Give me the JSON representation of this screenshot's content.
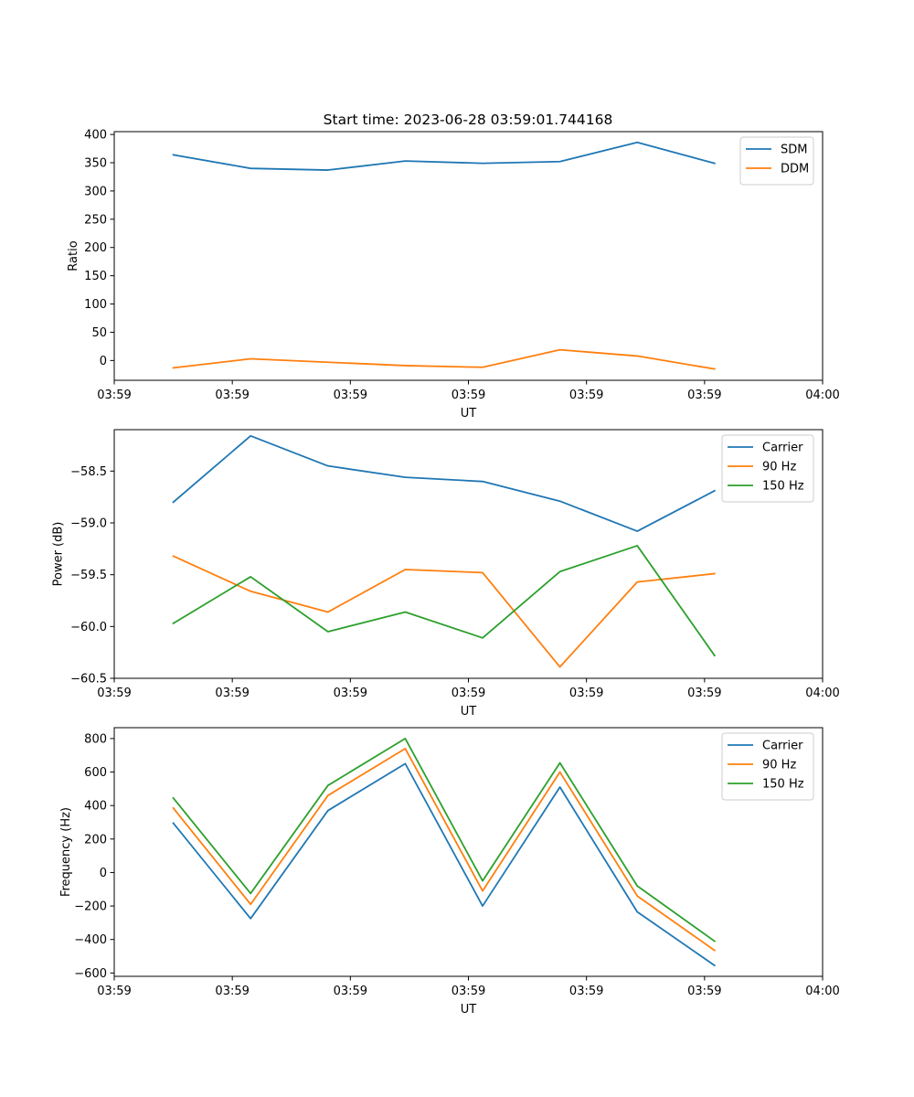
{
  "title": "Start time: 2023-06-28 03:59:01.744168",
  "colors": {
    "blue": "#1f77b4",
    "orange": "#ff7f0e",
    "green": "#2ca02c"
  },
  "chart_data": [
    {
      "type": "line",
      "xlabel": "UT",
      "ylabel": "Ratio",
      "xlim": [
        0,
        12
      ],
      "ylim": [
        -35,
        405
      ],
      "x_ticks": [
        0,
        2,
        4,
        6,
        8,
        10,
        12
      ],
      "x_tick_labels": [
        "03:59",
        "03:59",
        "03:59",
        "03:59",
        "03:59",
        "03:59",
        "04:00"
      ],
      "y_ticks": [
        0,
        50,
        100,
        150,
        200,
        250,
        300,
        350,
        400
      ],
      "y_tick_labels": [
        "0",
        "50",
        "100",
        "150",
        "200",
        "250",
        "300",
        "350",
        "400"
      ],
      "legend_position": "top-right",
      "grid": false,
      "x": [
        1,
        2.31,
        3.62,
        4.93,
        6.24,
        7.55,
        8.86,
        10.17
      ],
      "series": [
        {
          "name": "SDM",
          "color": "#1f77b4",
          "values": [
            364,
            340,
            337,
            353,
            349,
            352,
            386,
            349
          ]
        },
        {
          "name": "DDM",
          "color": "#ff7f0e",
          "values": [
            -13,
            3,
            -3,
            -9,
            -12,
            19,
            8,
            -15
          ]
        }
      ]
    },
    {
      "type": "line",
      "xlabel": "UT",
      "ylabel": "Power (dB)",
      "xlim": [
        0,
        12
      ],
      "ylim": [
        -60.5,
        -58.1
      ],
      "x_ticks": [
        0,
        2,
        4,
        6,
        8,
        10,
        12
      ],
      "x_tick_labels": [
        "03:59",
        "03:59",
        "03:59",
        "03:59",
        "03:59",
        "03:59",
        "04:00"
      ],
      "y_ticks": [
        -60.5,
        -60.0,
        -59.5,
        -59.0,
        -58.5
      ],
      "y_tick_labels": [
        "−60.5",
        "−60.0",
        "−59.5",
        "−59.0",
        "−58.5"
      ],
      "legend_position": "top-right",
      "grid": false,
      "x": [
        1,
        2.31,
        3.62,
        4.93,
        6.24,
        7.55,
        8.86,
        10.17
      ],
      "series": [
        {
          "name": "Carrier",
          "color": "#1f77b4",
          "values": [
            -58.8,
            -58.16,
            -58.45,
            -58.56,
            -58.6,
            -58.79,
            -59.08,
            -58.69
          ]
        },
        {
          "name": "90 Hz",
          "color": "#ff7f0e",
          "values": [
            -59.32,
            -59.66,
            -59.86,
            -59.45,
            -59.48,
            -60.39,
            -59.57,
            -59.49
          ]
        },
        {
          "name": "150 Hz",
          "color": "#2ca02c",
          "values": [
            -59.97,
            -59.52,
            -60.05,
            -59.86,
            -60.11,
            -59.47,
            -59.22,
            -60.28
          ]
        }
      ]
    },
    {
      "type": "line",
      "xlabel": "UT",
      "ylabel": "Frequency (Hz)",
      "xlim": [
        0,
        12
      ],
      "ylim": [
        -620,
        865
      ],
      "x_ticks": [
        0,
        2,
        4,
        6,
        8,
        10,
        12
      ],
      "x_tick_labels": [
        "03:59",
        "03:59",
        "03:59",
        "03:59",
        "03:59",
        "03:59",
        "04:00"
      ],
      "y_ticks": [
        -600,
        -400,
        -200,
        0,
        200,
        400,
        600,
        800
      ],
      "y_tick_labels": [
        "−600",
        "−400",
        "−200",
        "0",
        "200",
        "400",
        "600",
        "800"
      ],
      "legend_position": "top-right",
      "grid": false,
      "x": [
        1,
        2.31,
        3.62,
        4.93,
        6.24,
        7.55,
        8.86,
        10.17
      ],
      "series": [
        {
          "name": "Carrier",
          "color": "#1f77b4",
          "values": [
            295,
            -275,
            370,
            650,
            -200,
            510,
            -235,
            -555
          ]
        },
        {
          "name": "90 Hz",
          "color": "#ff7f0e",
          "values": [
            385,
            -190,
            460,
            740,
            -110,
            600,
            -140,
            -465
          ]
        },
        {
          "name": "150 Hz",
          "color": "#2ca02c",
          "values": [
            445,
            -125,
            520,
            800,
            -50,
            655,
            -80,
            -410
          ]
        }
      ]
    }
  ]
}
